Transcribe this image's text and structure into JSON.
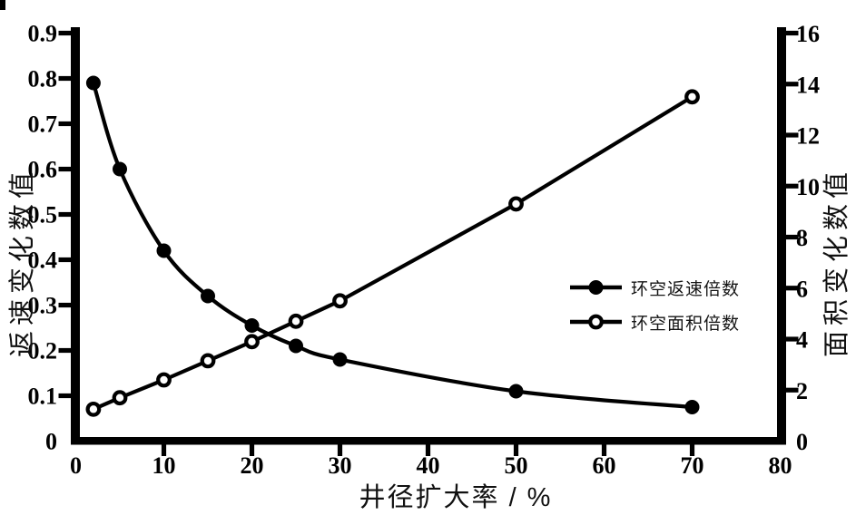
{
  "figure": {
    "background": "#ffffff",
    "ink_color": "#000000"
  },
  "chart_data": {
    "type": "line",
    "title": "",
    "xlabel": "井径扩大率 / %",
    "ylabel_left": "返速变化数值",
    "ylabel_right": "面积变化数值",
    "x": [
      2,
      5,
      10,
      15,
      20,
      25,
      30,
      50,
      70
    ],
    "series": [
      {
        "name": "环空返速倍数",
        "axis": "left",
        "marker": "filled-circle",
        "smooth": true,
        "values": [
          0.79,
          0.6,
          0.42,
          0.32,
          0.255,
          0.21,
          0.18,
          0.11,
          0.075
        ]
      },
      {
        "name": "环空面积倍数",
        "axis": "right",
        "marker": "open-circle",
        "smooth": false,
        "values": [
          1.25,
          1.7,
          2.4,
          3.15,
          3.9,
          4.7,
          5.5,
          9.3,
          13.5
        ]
      }
    ],
    "x_ticks": [
      0,
      10,
      20,
      30,
      40,
      50,
      60,
      70,
      80
    ],
    "y_ticks_left": [
      0,
      0.1,
      0.2,
      0.3,
      0.4,
      0.5,
      0.6,
      0.7,
      0.8,
      0.9
    ],
    "y_ticks_right": [
      0,
      2,
      4,
      6,
      8,
      10,
      12,
      14,
      16
    ],
    "xlim": [
      0,
      80
    ],
    "ylim_left": [
      0,
      0.9
    ],
    "ylim_right": [
      0,
      16
    ],
    "grid": false,
    "legend_position": "center-right"
  },
  "legend": {
    "items": [
      {
        "label": "环空返速倍数",
        "marker": "filled-circle"
      },
      {
        "label": "环空面积倍数",
        "marker": "open-circle"
      }
    ]
  }
}
